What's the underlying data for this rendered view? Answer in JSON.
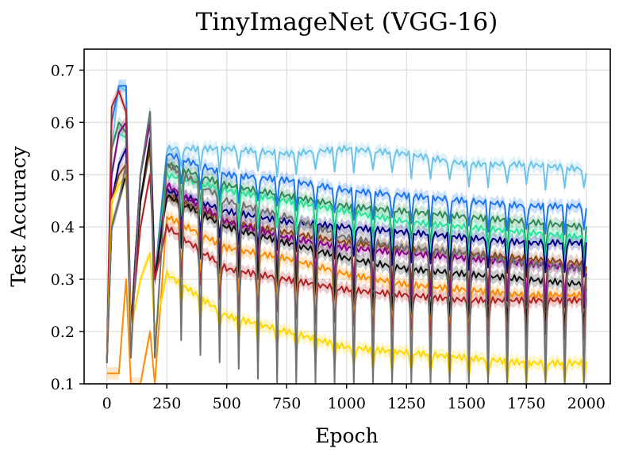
{
  "chart_data": {
    "type": "line",
    "title": "TinyImageNet (VGG-16)",
    "xlabel": "Epoch",
    "ylabel": "Test Accuracy",
    "xlim": [
      -95,
      2100
    ],
    "ylim": [
      0.1,
      0.74
    ],
    "xticks": [
      0,
      250,
      500,
      750,
      1000,
      1250,
      1500,
      1750,
      2000
    ],
    "yticks": [
      0.1,
      0.2,
      0.3,
      0.4,
      0.5,
      0.6,
      0.7
    ],
    "xtick_labels": [
      "0",
      "250",
      "500",
      "750",
      "1000",
      "1250",
      "1500",
      "1750",
      "2000"
    ],
    "ytick_labels": [
      "0.1",
      "0.2",
      "0.3",
      "0.4",
      "0.5",
      "0.6",
      "0.7"
    ],
    "grid": true,
    "legend": "none",
    "shaded_band": "std band around each series",
    "cycle_length": 80,
    "series": [
      {
        "color": "#6ec3e6",
        "points": [
          [
            0,
            0.14
          ],
          [
            20,
            0.55
          ],
          [
            50,
            0.67
          ],
          [
            80,
            0.66
          ],
          [
            100,
            0.15
          ],
          [
            140,
            0.5
          ],
          [
            180,
            0.62
          ],
          [
            200,
            0.3
          ],
          [
            250,
            0.55
          ],
          [
            500,
            0.55
          ],
          [
            750,
            0.54
          ],
          [
            1000,
            0.55
          ],
          [
            1250,
            0.54
          ],
          [
            1500,
            0.52
          ],
          [
            1750,
            0.52
          ],
          [
            2000,
            0.51
          ]
        ],
        "drop": 0.04
      },
      {
        "color": "#1f77f0",
        "points": [
          [
            0,
            0.14
          ],
          [
            20,
            0.6
          ],
          [
            50,
            0.67
          ],
          [
            80,
            0.67
          ],
          [
            100,
            0.2
          ],
          [
            140,
            0.5
          ],
          [
            180,
            0.6
          ],
          [
            200,
            0.3
          ],
          [
            250,
            0.54
          ],
          [
            500,
            0.5
          ],
          [
            750,
            0.49
          ],
          [
            1000,
            0.47
          ],
          [
            1250,
            0.46
          ],
          [
            1500,
            0.45
          ],
          [
            1750,
            0.44
          ],
          [
            2000,
            0.44
          ]
        ],
        "drop": 0.05
      },
      {
        "color": "#2e8b57",
        "points": [
          [
            0,
            0.14
          ],
          [
            20,
            0.55
          ],
          [
            50,
            0.6
          ],
          [
            80,
            0.58
          ],
          [
            100,
            0.2
          ],
          [
            140,
            0.5
          ],
          [
            180,
            0.62
          ],
          [
            200,
            0.3
          ],
          [
            250,
            0.52
          ],
          [
            500,
            0.48
          ],
          [
            750,
            0.46
          ],
          [
            1000,
            0.44
          ],
          [
            1250,
            0.43
          ],
          [
            1500,
            0.42
          ],
          [
            1750,
            0.41
          ],
          [
            2000,
            0.4
          ]
        ],
        "drop": 0.06
      },
      {
        "color": "#29e39a",
        "points": [
          [
            0,
            0.14
          ],
          [
            20,
            0.5
          ],
          [
            50,
            0.58
          ],
          [
            80,
            0.57
          ],
          [
            100,
            0.2
          ],
          [
            140,
            0.5
          ],
          [
            180,
            0.6
          ],
          [
            200,
            0.3
          ],
          [
            250,
            0.5
          ],
          [
            500,
            0.47
          ],
          [
            750,
            0.45
          ],
          [
            1000,
            0.43
          ],
          [
            1250,
            0.41
          ],
          [
            1500,
            0.4
          ],
          [
            1750,
            0.39
          ],
          [
            2000,
            0.38
          ]
        ],
        "drop": 0.06
      },
      {
        "color": "#000080",
        "points": [
          [
            0,
            0.14
          ],
          [
            20,
            0.45
          ],
          [
            50,
            0.52
          ],
          [
            80,
            0.55
          ],
          [
            100,
            0.2
          ],
          [
            140,
            0.45
          ],
          [
            180,
            0.55
          ],
          [
            200,
            0.3
          ],
          [
            250,
            0.47
          ],
          [
            500,
            0.43
          ],
          [
            750,
            0.41
          ],
          [
            1000,
            0.4
          ],
          [
            1250,
            0.39
          ],
          [
            1500,
            0.38
          ],
          [
            1750,
            0.37
          ],
          [
            2000,
            0.37
          ]
        ],
        "drop": 0.06
      },
      {
        "color": "#8b4513",
        "points": [
          [
            0,
            0.14
          ],
          [
            20,
            0.45
          ],
          [
            50,
            0.5
          ],
          [
            80,
            0.52
          ],
          [
            100,
            0.2
          ],
          [
            140,
            0.45
          ],
          [
            180,
            0.55
          ],
          [
            200,
            0.3
          ],
          [
            250,
            0.46
          ],
          [
            500,
            0.41
          ],
          [
            750,
            0.39
          ],
          [
            1000,
            0.37
          ],
          [
            1250,
            0.36
          ],
          [
            1500,
            0.35
          ],
          [
            1750,
            0.34
          ],
          [
            2000,
            0.33
          ]
        ],
        "drop": 0.07
      },
      {
        "color": "#8b008b",
        "points": [
          [
            0,
            0.14
          ],
          [
            20,
            0.5
          ],
          [
            50,
            0.58
          ],
          [
            80,
            0.6
          ],
          [
            100,
            0.2
          ],
          [
            140,
            0.5
          ],
          [
            180,
            0.6
          ],
          [
            200,
            0.3
          ],
          [
            250,
            0.48
          ],
          [
            500,
            0.41
          ],
          [
            750,
            0.38
          ],
          [
            1000,
            0.36
          ],
          [
            1250,
            0.35
          ],
          [
            1500,
            0.34
          ],
          [
            1750,
            0.33
          ],
          [
            2000,
            0.32
          ]
        ],
        "drop": 0.08
      },
      {
        "color": "#111111",
        "points": [
          [
            0,
            0.14
          ],
          [
            20,
            0.4
          ],
          [
            50,
            0.45
          ],
          [
            80,
            0.5
          ],
          [
            100,
            0.2
          ],
          [
            140,
            0.45
          ],
          [
            180,
            0.57
          ],
          [
            200,
            0.3
          ],
          [
            250,
            0.46
          ],
          [
            500,
            0.4
          ],
          [
            750,
            0.37
          ],
          [
            1000,
            0.34
          ],
          [
            1250,
            0.32
          ],
          [
            1500,
            0.31
          ],
          [
            1750,
            0.3
          ],
          [
            2000,
            0.29
          ]
        ],
        "drop": 0.09
      },
      {
        "color": "#ff8c00",
        "points": [
          [
            0,
            0.12
          ],
          [
            20,
            0.12
          ],
          [
            50,
            0.12
          ],
          [
            80,
            0.3
          ],
          [
            100,
            0.1
          ],
          [
            140,
            0.1
          ],
          [
            180,
            0.2
          ],
          [
            200,
            0.1
          ],
          [
            250,
            0.42
          ],
          [
            500,
            0.36
          ],
          [
            750,
            0.34
          ],
          [
            1000,
            0.31
          ],
          [
            1250,
            0.29
          ],
          [
            1500,
            0.28
          ],
          [
            1750,
            0.27
          ],
          [
            2000,
            0.27
          ]
        ],
        "drop": 0.09
      },
      {
        "color": "#b22222",
        "points": [
          [
            0,
            0.14
          ],
          [
            20,
            0.63
          ],
          [
            50,
            0.66
          ],
          [
            80,
            0.62
          ],
          [
            100,
            0.2
          ],
          [
            140,
            0.4
          ],
          [
            180,
            0.5
          ],
          [
            200,
            0.3
          ],
          [
            250,
            0.4
          ],
          [
            500,
            0.32
          ],
          [
            750,
            0.3
          ],
          [
            1000,
            0.28
          ],
          [
            1250,
            0.27
          ],
          [
            1500,
            0.26
          ],
          [
            1750,
            0.26
          ],
          [
            2000,
            0.26
          ]
        ],
        "drop": 0.07
      },
      {
        "color": "#ffd700",
        "points": [
          [
            0,
            0.14
          ],
          [
            20,
            0.45
          ],
          [
            50,
            0.48
          ],
          [
            80,
            0.5
          ],
          [
            100,
            0.2
          ],
          [
            140,
            0.3
          ],
          [
            180,
            0.35
          ],
          [
            200,
            0.2
          ],
          [
            250,
            0.31
          ],
          [
            500,
            0.23
          ],
          [
            750,
            0.2
          ],
          [
            1000,
            0.17
          ],
          [
            1250,
            0.16
          ],
          [
            1500,
            0.15
          ],
          [
            1750,
            0.14
          ],
          [
            2000,
            0.14
          ]
        ],
        "drop": 0.04
      },
      {
        "color": "#707070",
        "points": [
          [
            0,
            0.14
          ],
          [
            20,
            0.4
          ],
          [
            50,
            0.45
          ],
          [
            80,
            0.52
          ],
          [
            100,
            0.15
          ],
          [
            140,
            0.5
          ],
          [
            180,
            0.62
          ],
          [
            200,
            0.15
          ],
          [
            250,
            0.52
          ],
          [
            500,
            0.45
          ],
          [
            750,
            0.42
          ],
          [
            1000,
            0.38
          ],
          [
            1250,
            0.36
          ],
          [
            1500,
            0.35
          ],
          [
            1750,
            0.33
          ],
          [
            2000,
            0.32
          ]
        ],
        "drop": 0.32
      }
    ]
  }
}
